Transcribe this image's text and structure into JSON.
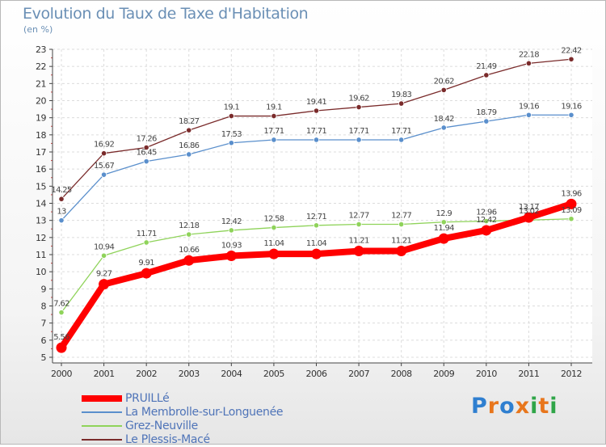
{
  "title": "Evolution du Taux de Taxe d'Habitation",
  "unit": "(en %)",
  "logo": {
    "text": "Proxiti",
    "colors": [
      "#2f7fd0",
      "#e8761c",
      "#2f7fd0",
      "#e8761c",
      "#2fa548",
      "#e8761c",
      "#2fa548"
    ]
  },
  "chart_data": {
    "type": "line",
    "title": "Evolution du Taux de Taxe d'Habitation",
    "ylabel": "(en %)",
    "xlabel": "",
    "x": [
      "2000",
      "2001",
      "2002",
      "2003",
      "2004",
      "2005",
      "2006",
      "2007",
      "2008",
      "2009",
      "2010",
      "2011",
      "2012"
    ],
    "ylim": [
      5,
      23
    ],
    "yticks": [
      "5",
      "6",
      "7",
      "8",
      "9",
      "10",
      "11",
      "12",
      "13",
      "14",
      "15",
      "16",
      "17",
      "18",
      "19",
      "20",
      "21",
      "22",
      "23"
    ],
    "grid": true,
    "legend_position": "bottom-left",
    "series": [
      {
        "name": "PRUILLé",
        "color": "#ff0000",
        "values": [
          5.56,
          9.27,
          9.91,
          10.66,
          10.93,
          11.04,
          11.04,
          11.21,
          11.21,
          11.94,
          12.42,
          13.17,
          13.96
        ],
        "labels": [
          "5.56",
          "9.27",
          "9.91",
          "10.66",
          "10.93",
          "11.04",
          "11.04",
          "11.21",
          "11.21",
          "11.94",
          "12.42",
          "13.17",
          "13.96"
        ]
      },
      {
        "name": "La Membrolle-sur-Longuenée",
        "color": "#5a8fcc",
        "values": [
          13,
          15.67,
          16.45,
          16.86,
          17.53,
          17.71,
          17.71,
          17.71,
          17.71,
          18.42,
          18.79,
          19.16,
          19.16
        ],
        "labels": [
          "13",
          "15.67",
          "16.45",
          "16.86",
          "17.53",
          "17.71",
          "17.71",
          "17.71",
          "17.71",
          "18.42",
          "18.79",
          "19.16",
          "19.16"
        ]
      },
      {
        "name": "Grez-Neuville",
        "color": "#8fd35a",
        "values": [
          7.62,
          10.94,
          11.71,
          12.18,
          12.42,
          12.58,
          12.71,
          12.77,
          12.77,
          12.9,
          12.96,
          13.02,
          13.09
        ],
        "labels": [
          "7.62",
          "10.94",
          "11.71",
          "12.18",
          "12.42",
          "12.58",
          "12.71",
          "12.77",
          "12.77",
          "12.9",
          "12.96",
          "13.02",
          "13.09"
        ]
      },
      {
        "name": "Le Plessis-Macé",
        "color": "#7a2b2b",
        "values": [
          14.25,
          16.92,
          17.26,
          18.27,
          19.1,
          19.1,
          19.41,
          19.62,
          19.83,
          20.62,
          21.49,
          22.18,
          22.42
        ],
        "labels": [
          "14.25",
          "16.92",
          "17.26",
          "18.27",
          "19.1",
          "19.1",
          "19.41",
          "19.62",
          "19.83",
          "20.62",
          "21.49",
          "22.18",
          "22.42"
        ]
      }
    ]
  }
}
